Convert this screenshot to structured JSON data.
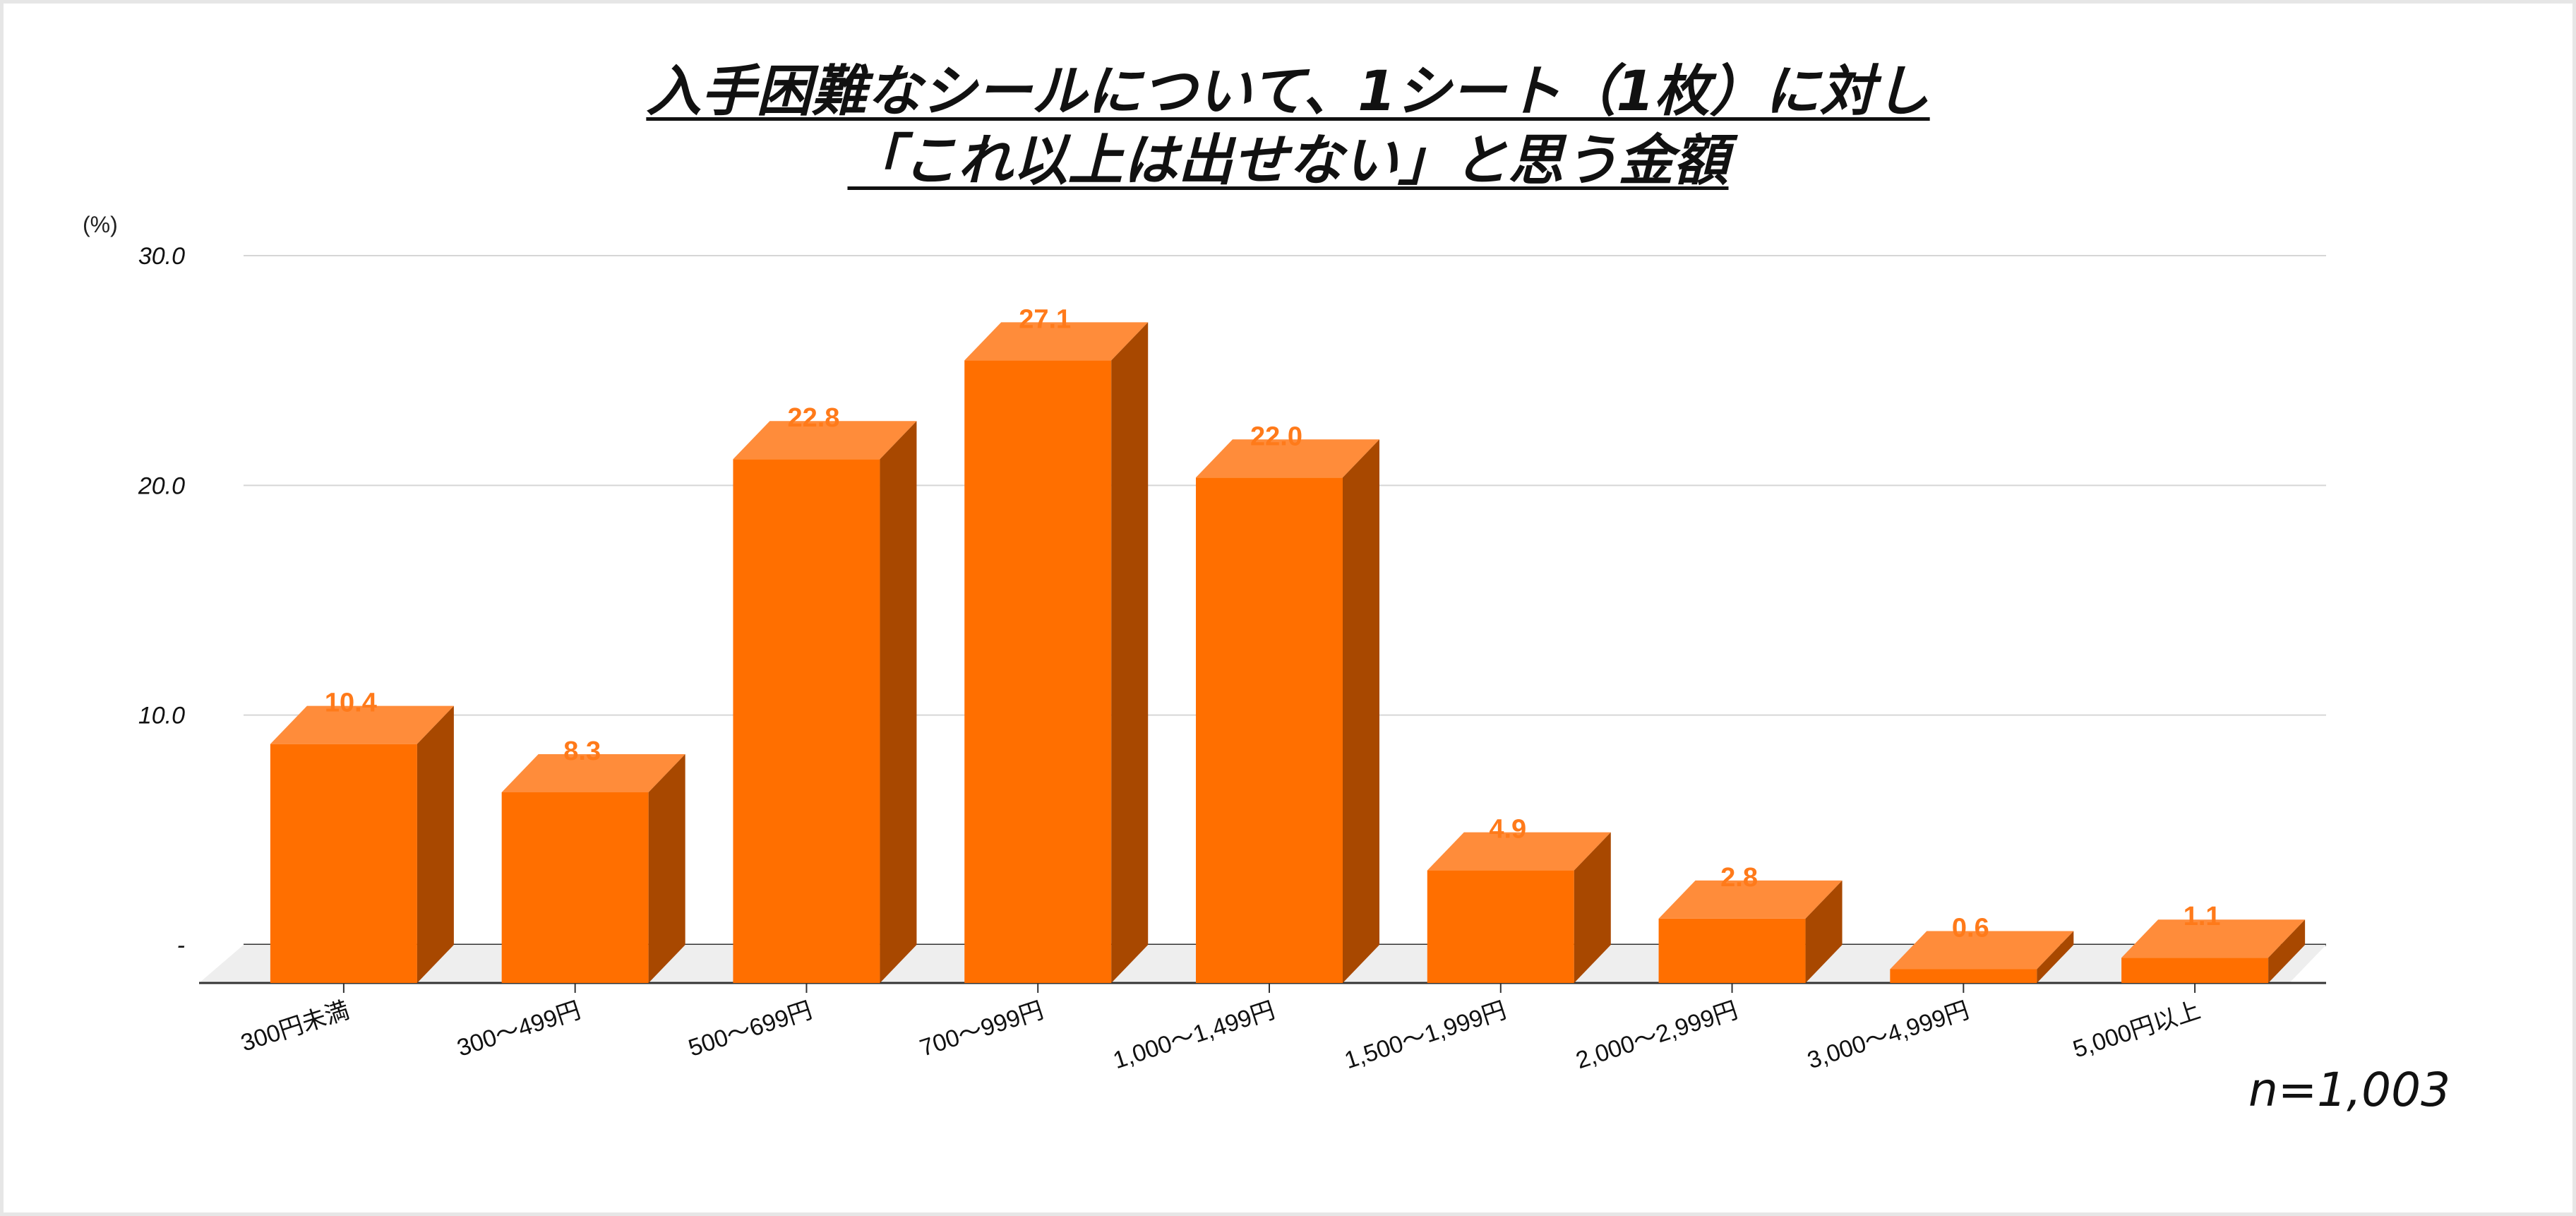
{
  "chart_data": {
    "type": "bar",
    "title_lines": [
      "入手困難なシールについて、1シート（1枚）に対し",
      "「これ以上は出せない」と思う金額"
    ],
    "ylabel": "(%)",
    "ylim": [
      0,
      30
    ],
    "yticks": [
      "-",
      "10.0",
      "20.0",
      "30.0"
    ],
    "ytick_values": [
      0,
      10,
      20,
      30
    ],
    "grid": true,
    "categories": [
      "300円未満",
      "300～499円",
      "500～699円",
      "700～999円",
      "1,000～1,499円",
      "1,500～1,999円",
      "2,000～2,999円",
      "3,000～4,999円",
      "5,000円以上"
    ],
    "values": [
      10.4,
      8.3,
      22.8,
      27.1,
      22.0,
      4.9,
      2.8,
      0.6,
      1.1
    ],
    "data_labels": [
      "10.4",
      "8.3",
      "22.8",
      "27.1",
      "22.0",
      "4.9",
      "2.8",
      "0.6",
      "1.1"
    ],
    "note": "n=1,003",
    "colors": {
      "bar_front": "#ff6f00",
      "bar_top": "#ff8c3a",
      "bar_side": "#a84800",
      "label": "#ff7a1a",
      "floor": "#eeeeee"
    }
  }
}
